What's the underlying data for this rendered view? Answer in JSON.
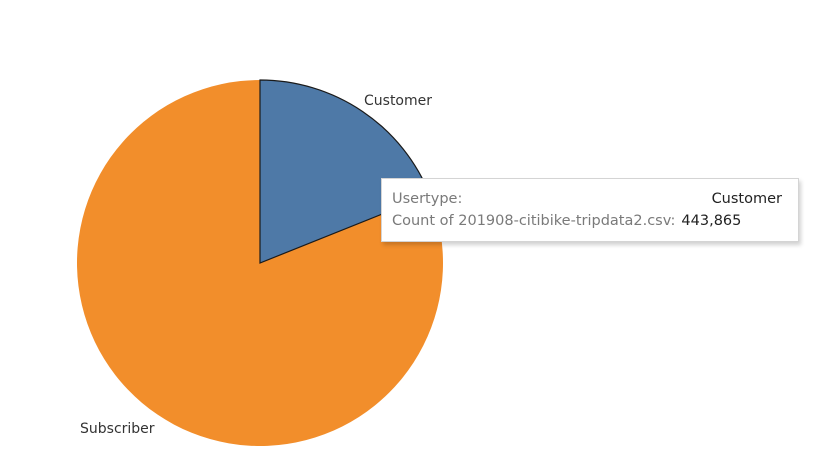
{
  "chart_data": {
    "type": "pie",
    "slices": [
      {
        "label": "Customer",
        "value": 443865,
        "color": "#4e79a7"
      },
      {
        "label": "Subscriber",
        "value": 1900000,
        "color": "#f28e2b"
      }
    ]
  },
  "tooltip": {
    "row1_label": "Usertype:",
    "row1_value": "Customer",
    "row2_label": "Count of 201908-citibike-tripdata2.csv:",
    "row2_value": "443,865"
  }
}
